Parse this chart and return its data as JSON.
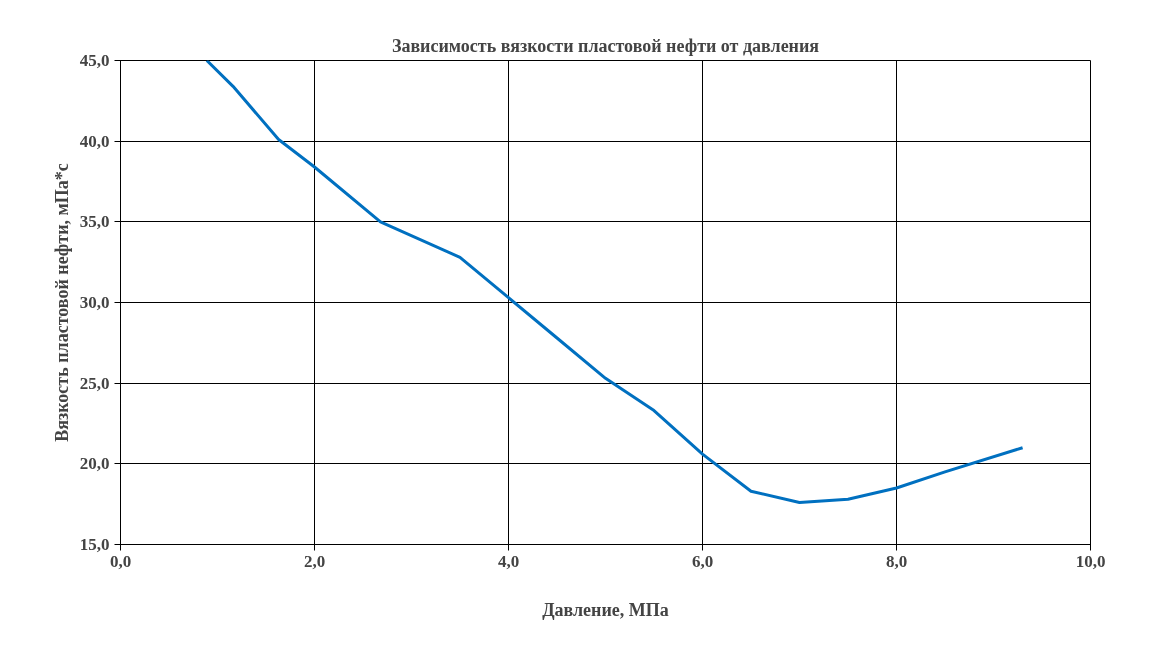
{
  "chart_data": {
    "type": "line",
    "title": "Зависимость вязкости пластовой нефти от давления",
    "xlabel": "Давление, МПа",
    "ylabel": "Вязкость пластовой нефти, мПа*с",
    "x": [
      0.89,
      1.16,
      1.63,
      2.0,
      2.68,
      3.5,
      4.0,
      4.5,
      5.0,
      5.5,
      6.0,
      6.5,
      7.0,
      7.5,
      8.0,
      8.5,
      9.3
    ],
    "series": [
      {
        "color": "#0070c0",
        "values": [
          45.0,
          43.4,
          40.1,
          38.4,
          35.0,
          32.8,
          30.3,
          27.8,
          25.3,
          23.3,
          20.6,
          18.3,
          17.6,
          17.8,
          18.5,
          19.5,
          21.0
        ]
      }
    ],
    "xlim": [
      0,
      10
    ],
    "ylim": [
      15,
      45
    ],
    "xticks": [
      {
        "value": 0,
        "label": "0,0"
      },
      {
        "value": 2,
        "label": "2,0"
      },
      {
        "value": 4,
        "label": "4,0"
      },
      {
        "value": 6,
        "label": "6,0"
      },
      {
        "value": 8,
        "label": "8,0"
      },
      {
        "value": 10,
        "label": "10,0"
      }
    ],
    "yticks": [
      {
        "value": 15,
        "label": "15,0"
      },
      {
        "value": 20,
        "label": "20,0"
      },
      {
        "value": 25,
        "label": "25,0"
      },
      {
        "value": 30,
        "label": "30,0"
      },
      {
        "value": 35,
        "label": "35,0"
      },
      {
        "value": 40,
        "label": "40,0"
      },
      {
        "value": 45,
        "label": "45,0"
      }
    ],
    "grid": true,
    "marker": "none",
    "line_style": "solid"
  }
}
